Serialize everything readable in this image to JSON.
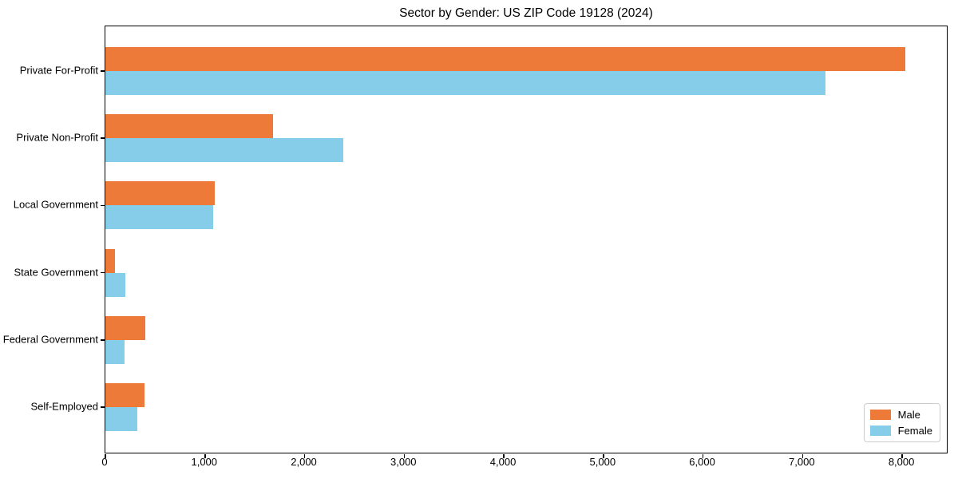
{
  "chart_data": {
    "type": "bar",
    "orientation": "horizontal",
    "title": "Sector by Gender: US ZIP Code 19128 (2024)",
    "categories": [
      "Private For-Profit",
      "Private Non-Profit",
      "Local Government",
      "State Government",
      "Federal Government",
      "Self-Employed"
    ],
    "series": [
      {
        "name": "Male",
        "color": "#ED7A39",
        "values": [
          8030,
          1680,
          1100,
          100,
          400,
          390
        ]
      },
      {
        "name": "Female",
        "color": "#85CDE8",
        "values": [
          7230,
          2390,
          1080,
          200,
          190,
          320
        ]
      }
    ],
    "xlabel": "",
    "ylabel": "",
    "xlim": [
      0,
      8440
    ],
    "xticks": [
      0,
      1000,
      2000,
      3000,
      4000,
      5000,
      6000,
      7000,
      8000
    ],
    "xtick_labels": [
      "0",
      "1,000",
      "2,000",
      "3,000",
      "4,000",
      "5,000",
      "6,000",
      "7,000",
      "8,000"
    ],
    "grid": false,
    "legend": {
      "position": "lower right"
    }
  }
}
